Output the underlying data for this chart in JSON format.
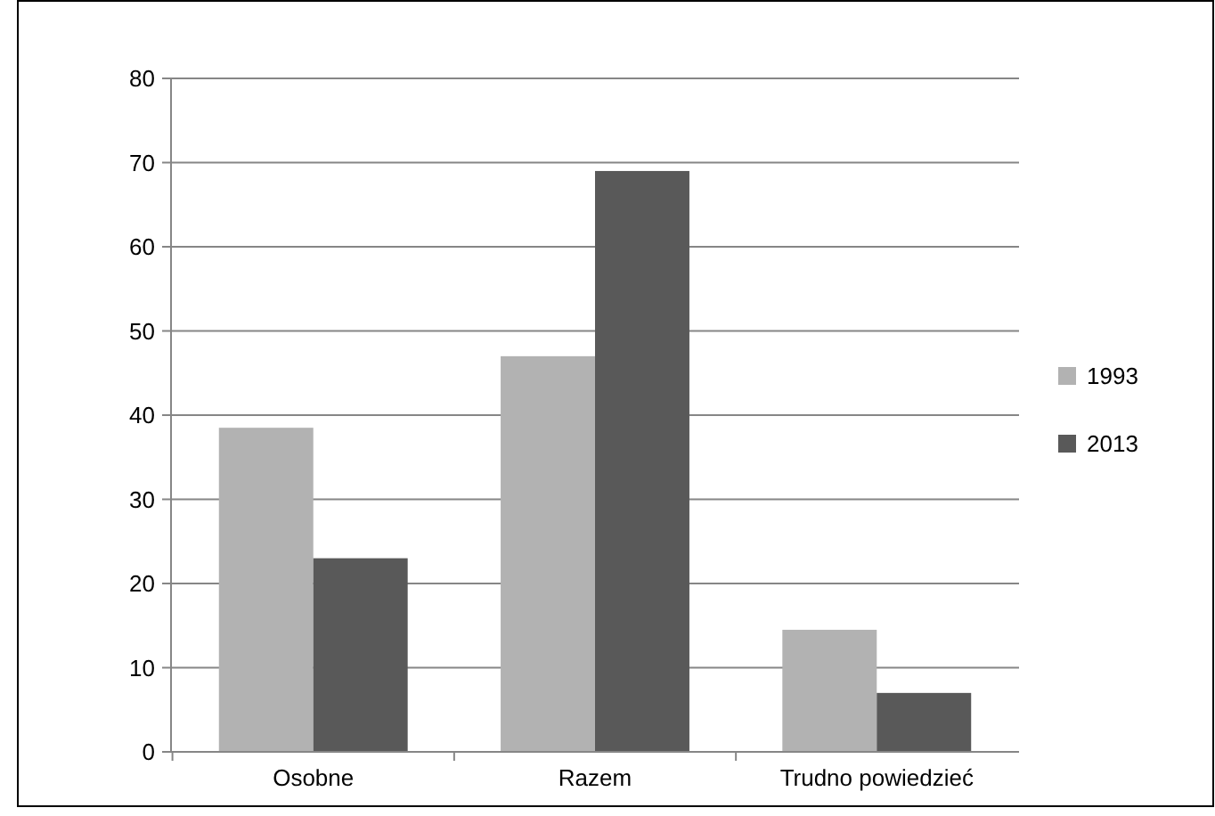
{
  "chart_data": {
    "type": "bar",
    "categories": [
      "Osobne",
      "Razem",
      "Trudno powiedzieć"
    ],
    "series": [
      {
        "name": "1993",
        "color": "#b2b2b2",
        "values": [
          38.5,
          47,
          14.5
        ]
      },
      {
        "name": "2013",
        "color": "#595959",
        "values": [
          23,
          69,
          7
        ]
      }
    ],
    "ylim": [
      0,
      80
    ],
    "yticks": [
      0,
      10,
      20,
      30,
      40,
      50,
      60,
      70,
      80
    ],
    "grid": "y",
    "legend": "right"
  }
}
